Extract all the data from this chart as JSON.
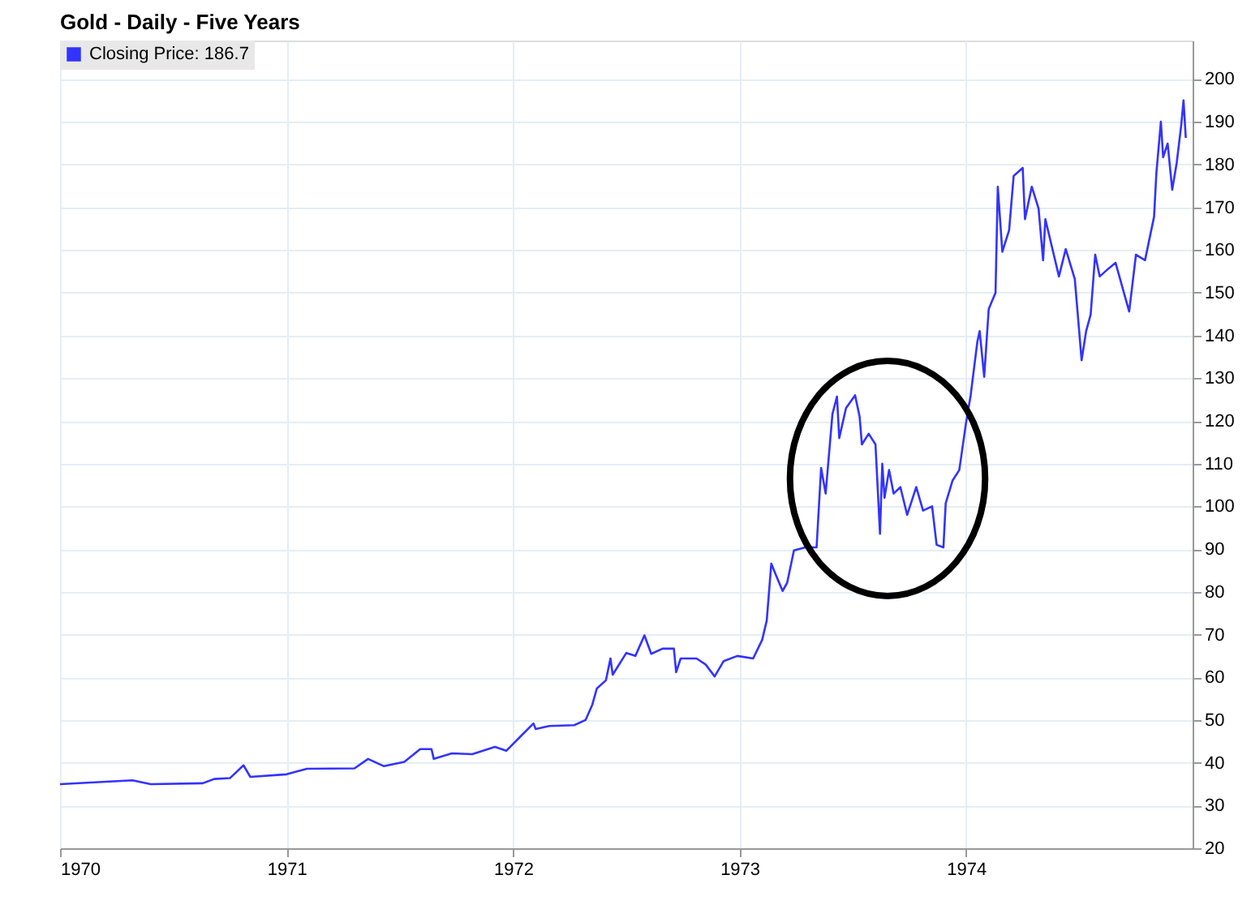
{
  "chart_data": {
    "type": "line",
    "title": "Gold - Daily - Five Years",
    "x": [
      1970.0,
      1970.32,
      1970.4,
      1970.63,
      1970.68,
      1970.75,
      1970.81,
      1970.84,
      1971.0,
      1971.09,
      1971.3,
      1971.36,
      1971.43,
      1971.52,
      1971.59,
      1971.64,
      1971.65,
      1971.73,
      1971.82,
      1971.92,
      1971.97,
      1972.03,
      1972.09,
      1972.1,
      1972.16,
      1972.27,
      1972.32,
      1972.35,
      1972.37,
      1972.41,
      1972.43,
      1972.44,
      1972.5,
      1972.54,
      1972.58,
      1972.61,
      1972.66,
      1972.71,
      1972.72,
      1972.74,
      1972.81,
      1972.85,
      1972.89,
      1972.93,
      1972.99,
      1973.06,
      1973.1,
      1973.12,
      1973.14,
      1973.16,
      1973.19,
      1973.21,
      1973.24,
      1973.29,
      1973.34,
      1973.36,
      1973.38,
      1973.41,
      1973.43,
      1973.44,
      1973.47,
      1973.51,
      1973.53,
      1973.54,
      1973.57,
      1973.6,
      1973.62,
      1973.63,
      1973.64,
      1973.66,
      1973.68,
      1973.71,
      1973.74,
      1973.78,
      1973.81,
      1973.85,
      1973.87,
      1973.9,
      1973.91,
      1973.94,
      1973.97,
      1974.0,
      1974.02,
      1974.05,
      1974.06,
      1974.08,
      1974.1,
      1974.13,
      1974.14,
      1974.16,
      1974.19,
      1974.21,
      1974.25,
      1974.26,
      1974.29,
      1974.32,
      1974.34,
      1974.35,
      1974.41,
      1974.44,
      1974.48,
      1974.51,
      1974.53,
      1974.55,
      1974.57,
      1974.59,
      1974.63,
      1974.66,
      1974.71,
      1974.72,
      1974.75,
      1974.79,
      1974.83,
      1974.84,
      1974.86,
      1974.87,
      1974.89,
      1974.91,
      1974.93,
      1974.95,
      1974.96,
      1974.97
    ],
    "series": [
      {
        "name": "Closing Price: 186.7",
        "color": "#3333ff",
        "values": [
          35,
          35.9,
          35,
          35.2,
          36.2,
          36.4,
          39.4,
          36.7,
          37.3,
          38.6,
          38.7,
          40.9,
          39.2,
          40.2,
          43.2,
          43.2,
          40.9,
          42.2,
          42,
          43.7,
          42.8,
          46,
          49.2,
          47.9,
          48.6,
          48.8,
          50,
          53.6,
          57.4,
          59.3,
          64.4,
          60.6,
          65.7,
          65,
          69.8,
          65.5,
          66.7,
          66.7,
          61.2,
          64.4,
          64.4,
          63,
          60.2,
          63.8,
          65,
          64.4,
          68.8,
          73.3,
          86.6,
          84,
          80.2,
          82.1,
          89.7,
          90.4,
          90.4,
          109,
          103,
          121.6,
          125.7,
          116,
          123,
          126,
          121,
          114.5,
          117,
          114.5,
          93.6,
          110,
          102,
          108.5,
          103,
          104.5,
          98,
          104.5,
          99,
          100,
          91,
          90.4,
          100.7,
          106,
          108.5,
          119.6,
          125.9,
          138.6,
          141,
          130.3,
          146.2,
          150,
          174.8,
          159.6,
          164.6,
          177.3,
          179.2,
          167.2,
          174.8,
          169.7,
          157.6,
          167.2,
          153.8,
          160.2,
          153.2,
          134.2,
          141,
          144.9,
          158.9,
          153.8,
          155.7,
          157,
          147.5,
          145.6,
          158.9,
          157.6,
          167.8,
          177.9,
          190,
          181.7,
          184.9,
          174.1,
          180.4,
          189.3,
          195,
          186.2
        ]
      }
    ],
    "xlim": [
      1970,
      1975
    ],
    "xticks": [
      1970,
      1971,
      1972,
      1973,
      1974
    ],
    "ylim": [
      20,
      209
    ],
    "yticks": [
      20,
      30,
      40,
      50,
      60,
      70,
      80,
      90,
      100,
      110,
      120,
      130,
      140,
      150,
      160,
      170,
      180,
      190,
      200
    ],
    "grid": true,
    "legend": "top left"
  }
}
